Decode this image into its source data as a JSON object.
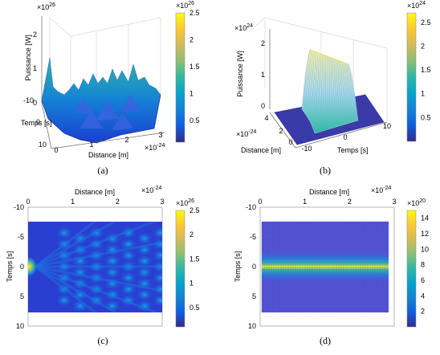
{
  "chart_data": [
    {
      "id": "a",
      "type": "surface3d",
      "caption": "(a)",
      "zlabel": "Puissance [W]",
      "ylabel": "Temps [s]",
      "xlabel": "Distance [m]",
      "z_exponent": "×10",
      "z_exponent_power": "26",
      "x_exponent": "×10",
      "x_exponent_power": "-24",
      "zticks": [
        "2",
        "1",
        "0"
      ],
      "yticks": [
        "-10",
        "0",
        "10"
      ],
      "xticks": [
        "0",
        "1",
        "2",
        "3"
      ],
      "zlim": [
        0,
        2.5e+26
      ],
      "xlim": [
        0,
        3e-24
      ],
      "ylim": [
        -10,
        10
      ],
      "colorbar": {
        "ticks": [
          "2.5",
          "2",
          "1.5",
          "1",
          "0.5"
        ],
        "exponent": "×10",
        "exponent_power": "26",
        "range": [
          0.1,
          2.5
        ]
      },
      "peak": {
        "x": 0,
        "t": 0,
        "value": 2.5e+26
      }
    },
    {
      "id": "b",
      "type": "surface3d",
      "caption": "(b)",
      "zlabel": "Puissance [W]",
      "ylabel": "Distance [m]",
      "xlabel": "Temps [s]",
      "z_exponent": "×10",
      "z_exponent_power": "24",
      "y_exponent": "×10",
      "y_exponent_power": "-24",
      "zticks": [
        "2",
        "1",
        "0"
      ],
      "yticks": [
        "4",
        "2",
        "0"
      ],
      "xticks": [
        "-10",
        "0",
        "10"
      ],
      "zlim": [
        0,
        2.7e+24
      ],
      "colorbar": {
        "ticks": [
          "2.5",
          "2",
          "1.5",
          "1",
          "0.5"
        ],
        "exponent": "×10",
        "exponent_power": "24",
        "range": [
          0,
          2.7
        ]
      },
      "peak": {
        "t": 0,
        "value": 2.5e+24
      }
    },
    {
      "id": "c",
      "type": "heatmap",
      "caption": "(c)",
      "xlabel": "Distance [m]",
      "ylabel": "Temps [s]",
      "x_exponent": "×10",
      "x_exponent_power": "-24",
      "xticks": [
        "0",
        "1",
        "2",
        "3"
      ],
      "yticks": [
        "-10",
        "-5",
        "0",
        "5",
        "10"
      ],
      "xlim": [
        0,
        3
      ],
      "ylim": [
        -10,
        10
      ],
      "colorbar": {
        "ticks": [
          "2.5",
          "2",
          "1.5",
          "1",
          "0.5"
        ],
        "exponent": "×10",
        "exponent_power": "26",
        "range": [
          0.1,
          2.5
        ]
      }
    },
    {
      "id": "d",
      "type": "heatmap",
      "caption": "(d)",
      "xlabel": "Distance [m]",
      "ylabel": "Temps [s]",
      "x_exponent": "×10",
      "x_exponent_power": "-24",
      "xticks": [
        "0",
        "1",
        "2",
        "3"
      ],
      "yticks": [
        "-10",
        "-5",
        "0",
        "5",
        "10"
      ],
      "xlim": [
        0,
        3
      ],
      "ylim": [
        -10,
        10
      ],
      "colorbar": {
        "ticks": [
          "14",
          "12",
          "10",
          "8",
          "6",
          "4",
          "2"
        ],
        "exponent": "×10",
        "exponent_power": "20",
        "range": [
          0,
          15
        ]
      }
    }
  ]
}
